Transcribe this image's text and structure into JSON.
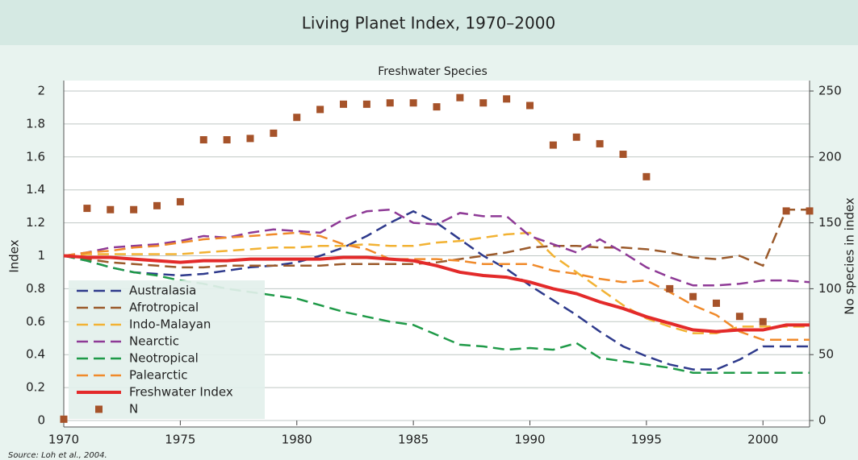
{
  "chart_data": {
    "type": "line",
    "title": "Living Planet Index, 1970–2000",
    "subtitle": "Freshwater Species",
    "y_label": "Index",
    "y2_label": "No species in index",
    "source": "Source: Loh et al., 2004.",
    "x": [
      1970,
      1971,
      1972,
      1973,
      1974,
      1975,
      1976,
      1977,
      1978,
      1979,
      1980,
      1981,
      1982,
      1983,
      1984,
      1985,
      1986,
      1987,
      1988,
      1989,
      1990,
      1991,
      1992,
      1993,
      1994,
      1995,
      1996,
      1997,
      1998,
      1999,
      2000,
      2001,
      2002
    ],
    "xlim": [
      1970,
      2002
    ],
    "xticks": [
      1970,
      1975,
      1980,
      1985,
      1990,
      1995,
      2000
    ],
    "ylim": [
      0,
      2
    ],
    "yticks": [
      0,
      0.2,
      0.4,
      0.6,
      0.8,
      1,
      1.2,
      1.4,
      1.6,
      1.8,
      2
    ],
    "y2lim": [
      0,
      250
    ],
    "y2ticks": [
      0,
      50,
      100,
      150,
      200,
      250
    ],
    "grid": true,
    "series": [
      {
        "name": "Australasia",
        "color": "#2e3a8c",
        "style": "dashed",
        "values": [
          1.0,
          0.97,
          0.93,
          0.9,
          0.89,
          0.88,
          0.89,
          0.91,
          0.93,
          0.94,
          0.96,
          1.0,
          1.05,
          1.12,
          1.2,
          1.27,
          1.2,
          1.1,
          1.0,
          0.92,
          0.82,
          0.73,
          0.64,
          0.54,
          0.45,
          0.39,
          0.34,
          0.31,
          0.31,
          0.37,
          0.45,
          0.45,
          0.45
        ]
      },
      {
        "name": "Afrotropical",
        "color": "#9b5a2b",
        "style": "dashed",
        "values": [
          1.0,
          0.98,
          0.96,
          0.95,
          0.94,
          0.93,
          0.93,
          0.94,
          0.94,
          0.94,
          0.94,
          0.94,
          0.95,
          0.95,
          0.95,
          0.95,
          0.96,
          0.98,
          1.0,
          1.02,
          1.05,
          1.06,
          1.06,
          1.05,
          1.05,
          1.04,
          1.02,
          0.99,
          0.98,
          1.0,
          0.94,
          1.28,
          1.28
        ]
      },
      {
        "name": "Indo-Malayan",
        "color": "#f2b233",
        "style": "dashed",
        "values": [
          1.0,
          1.01,
          1.01,
          1.01,
          1.01,
          1.01,
          1.02,
          1.03,
          1.04,
          1.05,
          1.05,
          1.06,
          1.06,
          1.07,
          1.06,
          1.06,
          1.08,
          1.09,
          1.11,
          1.13,
          1.14,
          1.0,
          0.9,
          0.8,
          0.7,
          0.62,
          0.57,
          0.53,
          0.53,
          0.57,
          0.57,
          0.57,
          0.57
        ]
      },
      {
        "name": "Nearctic",
        "color": "#8e3a96",
        "style": "dashed",
        "values": [
          1.0,
          1.02,
          1.05,
          1.06,
          1.07,
          1.09,
          1.12,
          1.11,
          1.14,
          1.16,
          1.15,
          1.14,
          1.22,
          1.27,
          1.28,
          1.2,
          1.19,
          1.26,
          1.24,
          1.24,
          1.12,
          1.07,
          1.02,
          1.1,
          1.02,
          0.93,
          0.87,
          0.82,
          0.82,
          0.83,
          0.85,
          0.85,
          0.84
        ]
      },
      {
        "name": "Neotropical",
        "color": "#1f9a48",
        "style": "dashed",
        "values": [
          1.0,
          0.97,
          0.93,
          0.9,
          0.88,
          0.85,
          0.83,
          0.8,
          0.78,
          0.76,
          0.74,
          0.7,
          0.66,
          0.63,
          0.6,
          0.58,
          0.52,
          0.46,
          0.45,
          0.43,
          0.44,
          0.43,
          0.47,
          0.38,
          0.36,
          0.34,
          0.32,
          0.29,
          0.29,
          0.29,
          0.29,
          0.29,
          0.29
        ]
      },
      {
        "name": "Palearctic",
        "color": "#f08a2a",
        "style": "dashed",
        "values": [
          1.0,
          1.02,
          1.03,
          1.05,
          1.06,
          1.08,
          1.1,
          1.11,
          1.12,
          1.13,
          1.14,
          1.12,
          1.07,
          1.04,
          0.98,
          0.98,
          0.98,
          0.97,
          0.95,
          0.95,
          0.95,
          0.91,
          0.89,
          0.86,
          0.84,
          0.85,
          0.78,
          0.7,
          0.64,
          0.54,
          0.49,
          0.49,
          0.49
        ]
      },
      {
        "name": "Freshwater Index",
        "color": "#e32a2a",
        "style": "solid",
        "values": [
          1.0,
          0.99,
          0.99,
          0.98,
          0.97,
          0.96,
          0.97,
          0.97,
          0.98,
          0.98,
          0.98,
          0.98,
          0.99,
          0.99,
          0.98,
          0.97,
          0.94,
          0.9,
          0.88,
          0.87,
          0.84,
          0.8,
          0.77,
          0.72,
          0.68,
          0.63,
          0.59,
          0.55,
          0.54,
          0.55,
          0.55,
          0.58,
          0.58
        ]
      },
      {
        "name": "N",
        "color": "#a6532a",
        "style": "markers",
        "axis": "y2",
        "values": [
          1,
          161,
          160,
          160,
          163,
          166,
          213,
          213,
          214,
          218,
          230,
          236,
          240,
          240,
          241,
          241,
          238,
          245,
          241,
          244,
          239,
          209,
          215,
          210,
          202,
          185,
          100,
          94,
          89,
          79,
          75,
          159,
          159
        ]
      }
    ]
  }
}
